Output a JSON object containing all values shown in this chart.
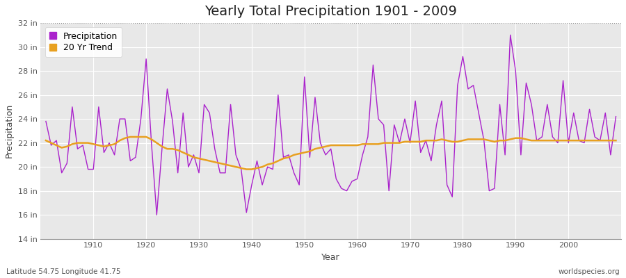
{
  "title": "Yearly Total Precipitation 1901 - 2009",
  "xlabel": "Year",
  "ylabel": "Precipitation",
  "footnote_left": "Latitude 54.75 Longitude 41.75",
  "footnote_right": "worldspecies.org",
  "years": [
    1901,
    1902,
    1903,
    1904,
    1905,
    1906,
    1907,
    1908,
    1909,
    1910,
    1911,
    1912,
    1913,
    1914,
    1915,
    1916,
    1917,
    1918,
    1919,
    1920,
    1921,
    1922,
    1923,
    1924,
    1925,
    1926,
    1927,
    1928,
    1929,
    1930,
    1931,
    1932,
    1933,
    1934,
    1935,
    1936,
    1937,
    1938,
    1939,
    1940,
    1941,
    1942,
    1943,
    1944,
    1945,
    1946,
    1947,
    1948,
    1949,
    1950,
    1951,
    1952,
    1953,
    1954,
    1955,
    1956,
    1957,
    1958,
    1959,
    1960,
    1961,
    1962,
    1963,
    1964,
    1965,
    1966,
    1967,
    1968,
    1969,
    1970,
    1971,
    1972,
    1973,
    1974,
    1975,
    1976,
    1977,
    1978,
    1979,
    1980,
    1981,
    1982,
    1983,
    1984,
    1985,
    1986,
    1987,
    1988,
    1989,
    1990,
    1991,
    1992,
    1993,
    1994,
    1995,
    1996,
    1997,
    1998,
    1999,
    2000,
    2001,
    2002,
    2003,
    2004,
    2005,
    2006,
    2007,
    2008,
    2009
  ],
  "precip": [
    23.8,
    21.8,
    22.2,
    19.5,
    20.3,
    25.0,
    21.5,
    21.8,
    19.8,
    19.8,
    25.0,
    21.2,
    22.0,
    21.0,
    24.0,
    24.0,
    20.5,
    20.8,
    24.0,
    29.0,
    22.0,
    16.0,
    21.5,
    26.5,
    23.8,
    19.5,
    24.5,
    20.0,
    21.0,
    19.5,
    25.2,
    24.5,
    21.5,
    19.5,
    19.5,
    25.2,
    21.0,
    19.8,
    16.2,
    18.5,
    20.5,
    18.5,
    20.0,
    19.8,
    26.0,
    20.8,
    21.0,
    19.5,
    18.5,
    27.5,
    20.8,
    25.8,
    22.0,
    21.0,
    21.5,
    19.0,
    18.2,
    18.0,
    18.8,
    19.0,
    21.0,
    22.5,
    28.5,
    24.0,
    23.5,
    18.0,
    23.5,
    22.0,
    24.0,
    22.0,
    25.5,
    21.2,
    22.2,
    20.5,
    23.5,
    25.5,
    18.5,
    17.5,
    26.8,
    29.2,
    26.5,
    26.8,
    24.5,
    22.2,
    18.0,
    18.2,
    25.2,
    21.0,
    31.0,
    28.0,
    21.0,
    27.0,
    25.2,
    22.2,
    22.5,
    25.2,
    22.5,
    22.0,
    27.2,
    22.0,
    24.5,
    22.2,
    22.0,
    24.8,
    22.5,
    22.2,
    24.5,
    21.0,
    24.2
  ],
  "trend": [
    22.2,
    22.0,
    21.8,
    21.6,
    21.7,
    21.9,
    22.0,
    22.0,
    22.0,
    21.9,
    21.8,
    21.7,
    21.8,
    21.9,
    22.2,
    22.4,
    22.5,
    22.5,
    22.5,
    22.5,
    22.3,
    22.0,
    21.7,
    21.5,
    21.5,
    21.4,
    21.2,
    21.0,
    20.8,
    20.7,
    20.6,
    20.5,
    20.4,
    20.3,
    20.2,
    20.1,
    20.0,
    19.9,
    19.8,
    19.8,
    19.9,
    20.0,
    20.2,
    20.3,
    20.5,
    20.7,
    20.8,
    21.0,
    21.1,
    21.2,
    21.3,
    21.5,
    21.6,
    21.7,
    21.8,
    21.8,
    21.8,
    21.8,
    21.8,
    21.8,
    21.9,
    21.9,
    21.9,
    21.9,
    22.0,
    22.0,
    22.0,
    22.0,
    22.1,
    22.1,
    22.1,
    22.1,
    22.2,
    22.2,
    22.2,
    22.3,
    22.2,
    22.1,
    22.1,
    22.2,
    22.3,
    22.3,
    22.3,
    22.3,
    22.2,
    22.1,
    22.2,
    22.2,
    22.3,
    22.4,
    22.4,
    22.3,
    22.2,
    22.2,
    22.2,
    22.2,
    22.2,
    22.2,
    22.2,
    22.2,
    22.2,
    22.2,
    22.2,
    22.2,
    22.2,
    22.2,
    22.2,
    22.2,
    22.2
  ],
  "precip_color": "#aa22cc",
  "trend_color": "#e8a020",
  "fig_bg_color": "#ffffff",
  "plot_bg_color": "#e8e8e8",
  "grid_color": "#ffffff",
  "ylim": [
    14,
    32
  ],
  "yticks": [
    14,
    16,
    18,
    20,
    22,
    24,
    26,
    28,
    30,
    32
  ],
  "xlim_min": 1901,
  "xlim_max": 2009,
  "xticks": [
    1910,
    1920,
    1930,
    1940,
    1950,
    1960,
    1970,
    1980,
    1990,
    2000
  ],
  "title_fontsize": 14,
  "axis_label_fontsize": 9,
  "tick_fontsize": 8,
  "footnote_fontsize": 7.5
}
